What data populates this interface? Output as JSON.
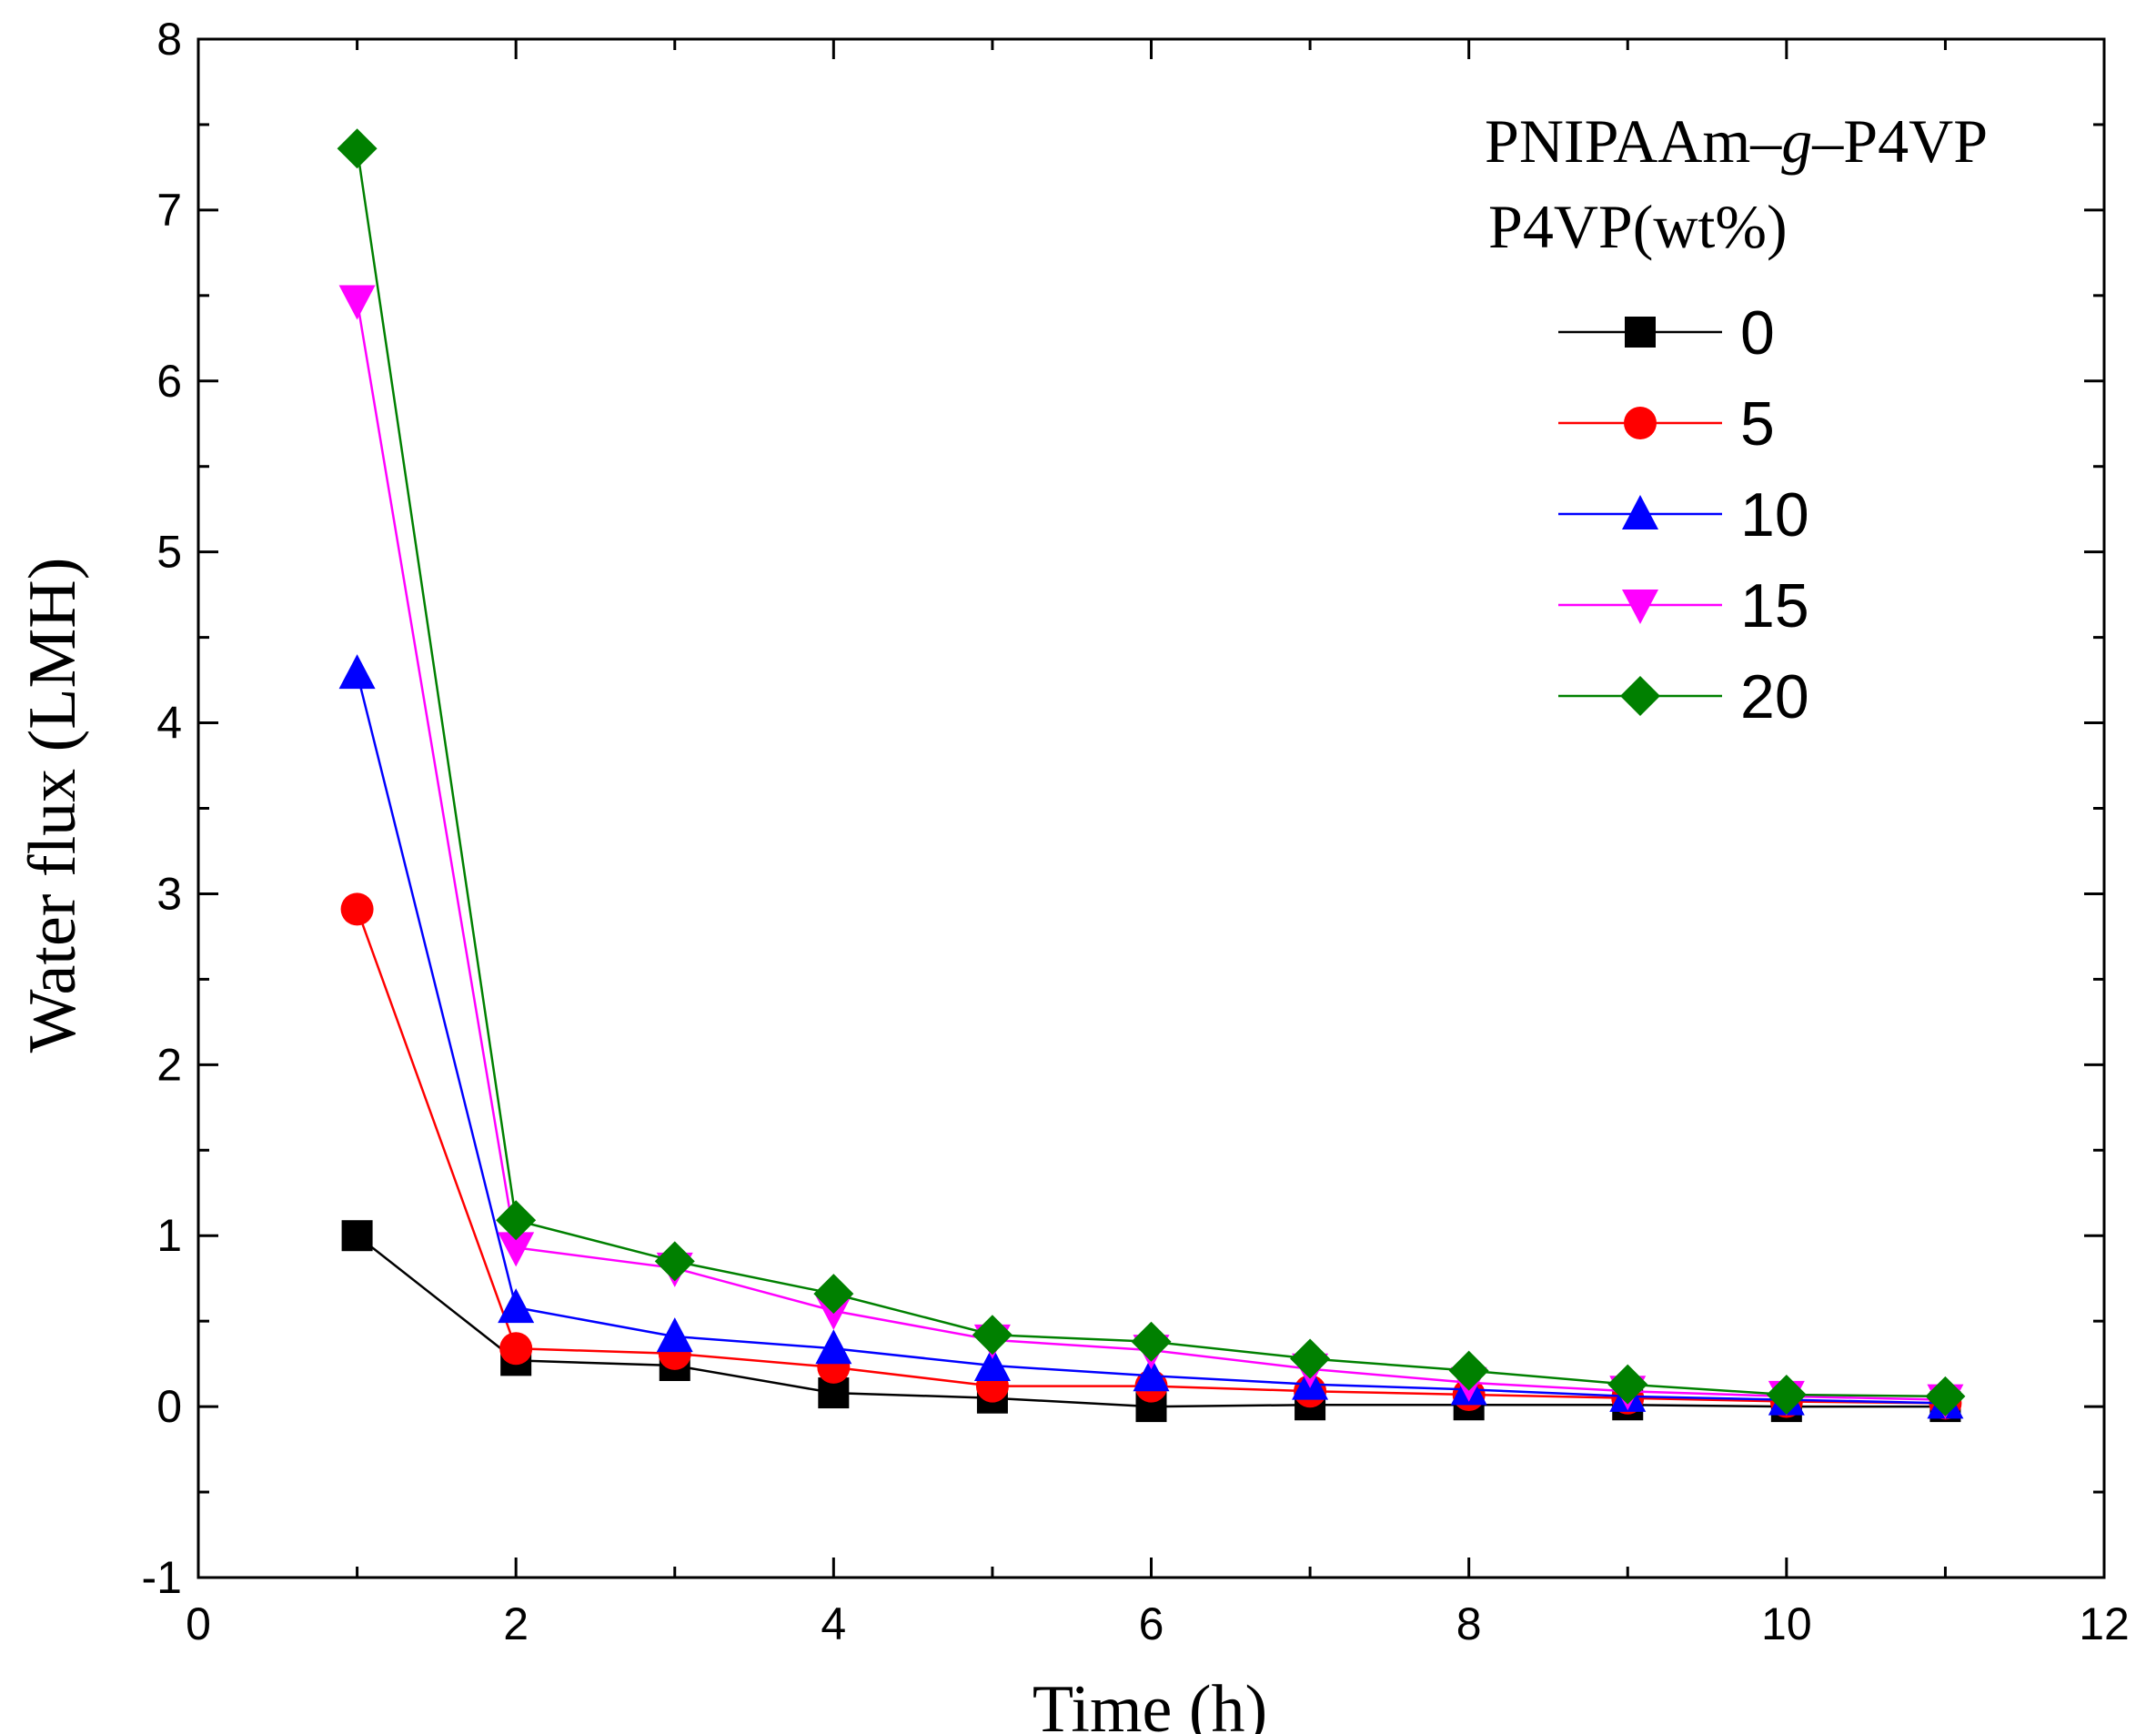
{
  "chart_data": {
    "type": "line",
    "xlabel": "Time (h)",
    "ylabel": "Water flux (LMH)",
    "xlim": [
      0,
      12
    ],
    "ylim": [
      -1,
      8
    ],
    "xticks": [
      0,
      2,
      4,
      6,
      8,
      10,
      12
    ],
    "yticks": [
      -1,
      0,
      1,
      2,
      3,
      4,
      5,
      6,
      7,
      8
    ],
    "grid": false,
    "legend": {
      "placement": "top-right",
      "title_line1": "PNIPAAm",
      "title_dash": "–",
      "title_g": "g",
      "title_line1_end": "–P4VP",
      "title_line2": "P4VP(wt%)"
    },
    "x": [
      1,
      2,
      3,
      4,
      5,
      6,
      7,
      8,
      9,
      10,
      11
    ],
    "series": [
      {
        "name": "0",
        "color": "#000000",
        "marker": "square",
        "values": [
          1.0,
          0.27,
          0.24,
          0.08,
          0.05,
          0.0,
          0.01,
          0.01,
          0.01,
          0.0,
          0.0
        ]
      },
      {
        "name": "5",
        "color": "#ff0000",
        "marker": "circle",
        "values": [
          2.91,
          0.34,
          0.31,
          0.23,
          0.12,
          0.12,
          0.09,
          0.07,
          0.05,
          0.03,
          0.02
        ]
      },
      {
        "name": "10",
        "color": "#0000ff",
        "marker": "triangle-up",
        "values": [
          4.29,
          0.58,
          0.41,
          0.34,
          0.24,
          0.18,
          0.13,
          0.1,
          0.06,
          0.04,
          0.02
        ]
      },
      {
        "name": "15",
        "color": "#ff00ff",
        "marker": "triangle-down",
        "values": [
          6.47,
          0.93,
          0.81,
          0.56,
          0.39,
          0.33,
          0.22,
          0.14,
          0.09,
          0.06,
          0.04
        ]
      },
      {
        "name": "20",
        "color": "#008000",
        "marker": "diamond",
        "values": [
          7.36,
          1.09,
          0.85,
          0.66,
          0.42,
          0.38,
          0.28,
          0.21,
          0.13,
          0.07,
          0.06
        ]
      }
    ]
  }
}
